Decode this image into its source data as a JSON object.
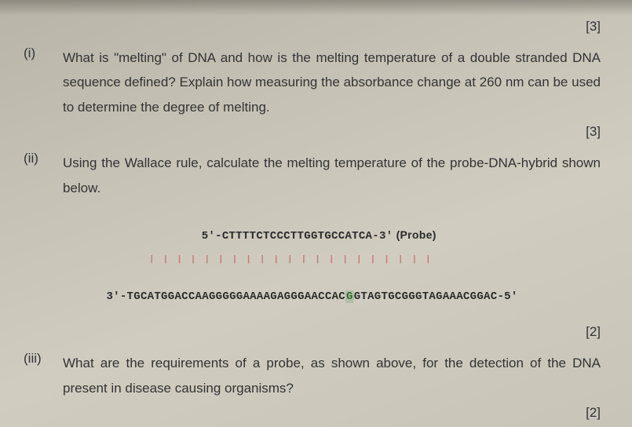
{
  "marks": {
    "m1": "[3]",
    "m2": "[3]",
    "m3": "[2]",
    "m4": "[2]"
  },
  "questions": {
    "i": {
      "num": "(i)",
      "text": "What is \"melting\" of DNA and how is the melting temperature of a double stranded DNA sequence defined? Explain how measuring the absorbance change at 260 nm can be used to determine the degree of melting."
    },
    "ii": {
      "num": "(ii)",
      "text": "Using the Wallace rule, calculate the melting temperature of the probe-DNA-hybrid shown below."
    },
    "iii": {
      "num": "(iii)",
      "text": "What are the requirements of a probe, as shown above, for the detection of the DNA present in disease causing organisms?"
    }
  },
  "sequence": {
    "probe_prefix": "5'-",
    "probe_seq": "CTTTTCTCCCTTGGTGCCATCA",
    "probe_suffix": "-3'",
    "probe_label": " (Probe)",
    "ticks": "| | | | | | | | | | | | | | | | | | | | |",
    "template_prefix": "3'-",
    "template_left": "TGCATGGACCAAGGGGGAAAAGAGGGAACCAC",
    "mismatch": "G",
    "template_right": "GTAGTGCGGGTAGAAACGGAC",
    "template_suffix": "-5'"
  }
}
